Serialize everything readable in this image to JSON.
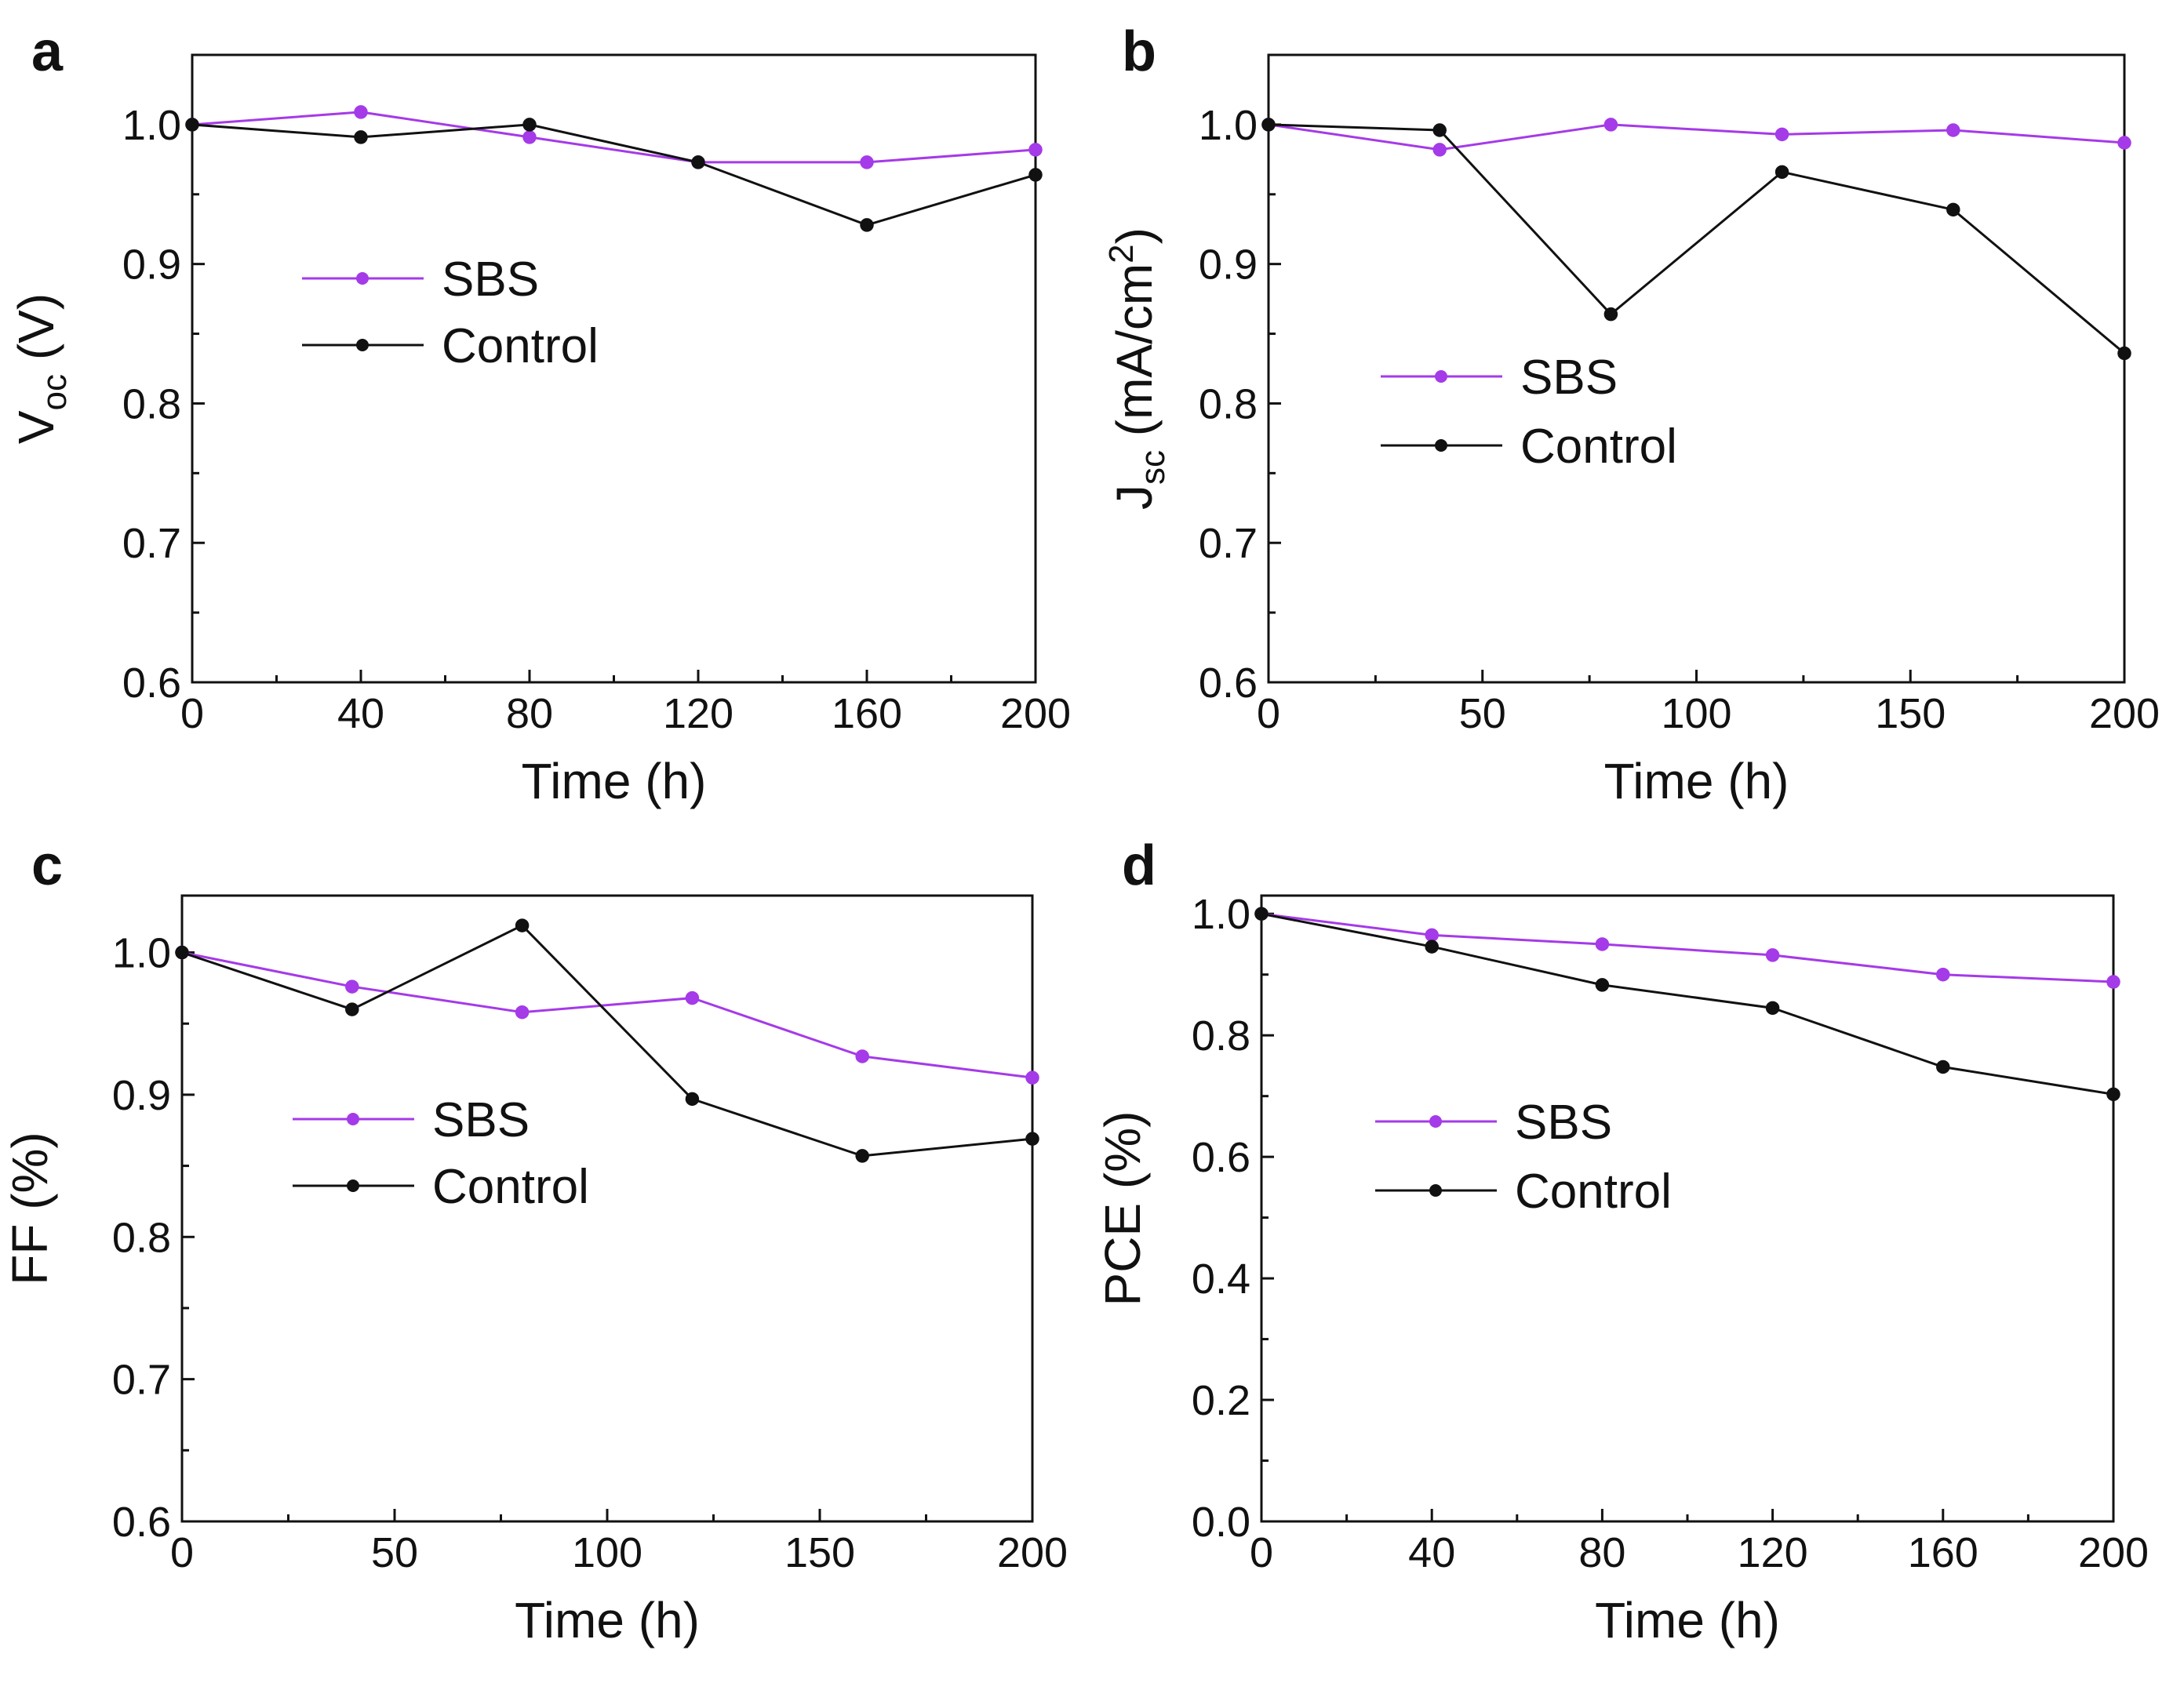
{
  "colors": {
    "sbs": "#a53ae8",
    "control": "#111111",
    "axis": "#111111"
  },
  "chart_data": [
    {
      "panel": "a",
      "type": "line",
      "xlabel": "Time (h)",
      "ylabel": {
        "main": "V",
        "sub": "oc",
        "rest": " (V)"
      },
      "xlim": [
        0,
        200
      ],
      "ylim": [
        0.6,
        1.05
      ],
      "xticks": [
        0,
        40,
        80,
        120,
        160,
        200
      ],
      "xtick_labels": [
        "0",
        "40",
        "80",
        "120",
        "160",
        "200"
      ],
      "yticks": [
        0.6,
        0.7,
        0.8,
        0.9,
        1.0
      ],
      "ytick_labels": [
        "0.6",
        "0.7",
        "0.8",
        "0.9",
        "1.0"
      ],
      "x": [
        0,
        40,
        80,
        120,
        160,
        200
      ],
      "series": [
        {
          "name": "SBS",
          "values": [
            1.0,
            1.009,
            0.991,
            0.973,
            0.973,
            0.982
          ]
        },
        {
          "name": "Control",
          "values": [
            1.0,
            0.991,
            1.0,
            0.973,
            0.928,
            0.964
          ]
        }
      ],
      "legend": "upper-left"
    },
    {
      "panel": "b",
      "type": "line",
      "xlabel": "Time (h)",
      "ylabel": {
        "main": "J",
        "sub": "sc",
        "rest": " (mA/cm",
        "sup": "2",
        "end": ")"
      },
      "xlim": [
        0,
        200
      ],
      "ylim": [
        0.6,
        1.05
      ],
      "xticks": [
        0,
        50,
        100,
        150,
        200
      ],
      "xtick_labels": [
        "0",
        "50",
        "100",
        "150",
        "200"
      ],
      "yticks": [
        0.6,
        0.7,
        0.8,
        0.9,
        1.0
      ],
      "ytick_labels": [
        "0.6",
        "0.7",
        "0.8",
        "0.9",
        "1.0"
      ],
      "x": [
        0,
        40,
        80,
        120,
        160,
        200
      ],
      "series": [
        {
          "name": "SBS",
          "values": [
            1.0,
            0.982,
            1.0,
            0.993,
            0.996,
            0.987
          ]
        },
        {
          "name": "Control",
          "values": [
            1.0,
            0.996,
            0.864,
            0.966,
            0.939,
            0.836
          ]
        }
      ],
      "legend": "middle-left"
    },
    {
      "panel": "c",
      "type": "line",
      "xlabel": "Time (h)",
      "ylabel": {
        "main": "FF (%)"
      },
      "xlim": [
        0,
        200
      ],
      "ylim": [
        0.6,
        1.04
      ],
      "xticks": [
        0,
        50,
        100,
        150,
        200
      ],
      "xtick_labels": [
        "0",
        "50",
        "100",
        "150",
        "200"
      ],
      "yticks": [
        0.6,
        0.7,
        0.8,
        0.9,
        1.0
      ],
      "ytick_labels": [
        "0.6",
        "0.7",
        "0.8",
        "0.9",
        "1.0"
      ],
      "x": [
        0,
        40,
        80,
        120,
        160,
        200
      ],
      "series": [
        {
          "name": "SBS",
          "values": [
            1.0,
            0.976,
            0.958,
            0.968,
            0.927,
            0.912
          ]
        },
        {
          "name": "Control",
          "values": [
            1.0,
            0.96,
            1.019,
            0.897,
            0.857,
            0.869
          ]
        }
      ],
      "legend": "upper-left"
    },
    {
      "panel": "d",
      "type": "line",
      "xlabel": "Time (h)",
      "ylabel": {
        "main": "PCE (%)"
      },
      "xlim": [
        0,
        200
      ],
      "ylim": [
        0.0,
        1.03
      ],
      "xticks": [
        0,
        40,
        80,
        120,
        160,
        200
      ],
      "xtick_labels": [
        "0",
        "40",
        "80",
        "120",
        "160",
        "200"
      ],
      "yticks": [
        0.0,
        0.2,
        0.4,
        0.6,
        0.8,
        1.0
      ],
      "ytick_labels": [
        "0.0",
        "0.2",
        "0.4",
        "0.6",
        "0.8",
        "1.0"
      ],
      "x": [
        0,
        40,
        80,
        120,
        160,
        200
      ],
      "series": [
        {
          "name": "SBS",
          "values": [
            1.0,
            0.965,
            0.95,
            0.932,
            0.9,
            0.888
          ]
        },
        {
          "name": "Control",
          "values": [
            1.0,
            0.946,
            0.883,
            0.845,
            0.748,
            0.703
          ]
        }
      ],
      "legend": "upper-left"
    }
  ]
}
